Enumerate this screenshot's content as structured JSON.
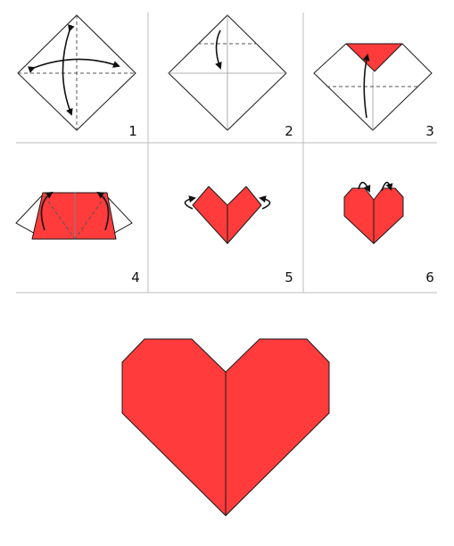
{
  "steps": [
    {
      "number": "1"
    },
    {
      "number": "2"
    },
    {
      "number": "3"
    },
    {
      "number": "4"
    },
    {
      "number": "5"
    },
    {
      "number": "6"
    }
  ],
  "colors": {
    "paper_red": "#ff3b3b",
    "outline": "#1a1a1a",
    "divider": "#bdbdbd"
  }
}
